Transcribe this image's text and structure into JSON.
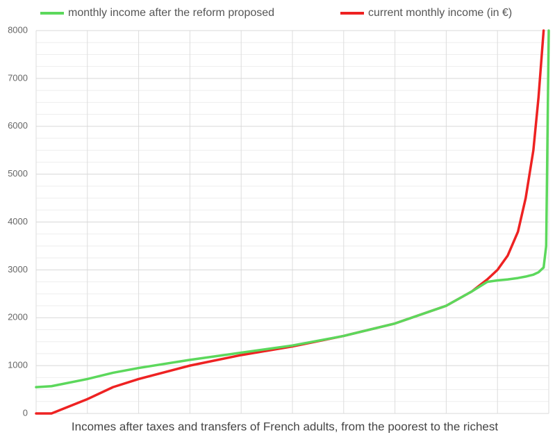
{
  "chart_data": {
    "type": "line",
    "xlabel": "Incomes after taxes and transfers of French adults, from the poorest to the richest",
    "x": [
      0,
      3,
      10,
      15,
      20,
      30,
      40,
      50,
      60,
      70,
      80,
      85,
      88,
      90,
      92,
      94,
      95.5,
      97,
      98,
      99,
      99.5,
      100
    ],
    "series": [
      {
        "name": "monthly income after the reform proposed",
        "color": "#5cd85c",
        "values": [
          550,
          570,
          720,
          850,
          950,
          1120,
          1270,
          1420,
          1620,
          1880,
          2250,
          2550,
          2750,
          2780,
          2800,
          2830,
          2860,
          2900,
          2950,
          3050,
          3500,
          8000
        ]
      },
      {
        "name": "current monthly income (in €)",
        "color": "#ee2222",
        "values": [
          0,
          0,
          300,
          550,
          720,
          1000,
          1220,
          1400,
          1620,
          1880,
          2250,
          2550,
          2800,
          3000,
          3300,
          3800,
          4500,
          5500,
          6600,
          8000,
          null,
          null
        ]
      }
    ],
    "xlim": [
      0,
      100
    ],
    "xticks": [
      0,
      10,
      20,
      30,
      40,
      50,
      60,
      70,
      80,
      90,
      100
    ],
    "ylim": [
      0,
      8000
    ],
    "yticks": [
      0,
      1000,
      2000,
      3000,
      4000,
      5000,
      6000,
      7000,
      8000
    ],
    "grid": true
  }
}
